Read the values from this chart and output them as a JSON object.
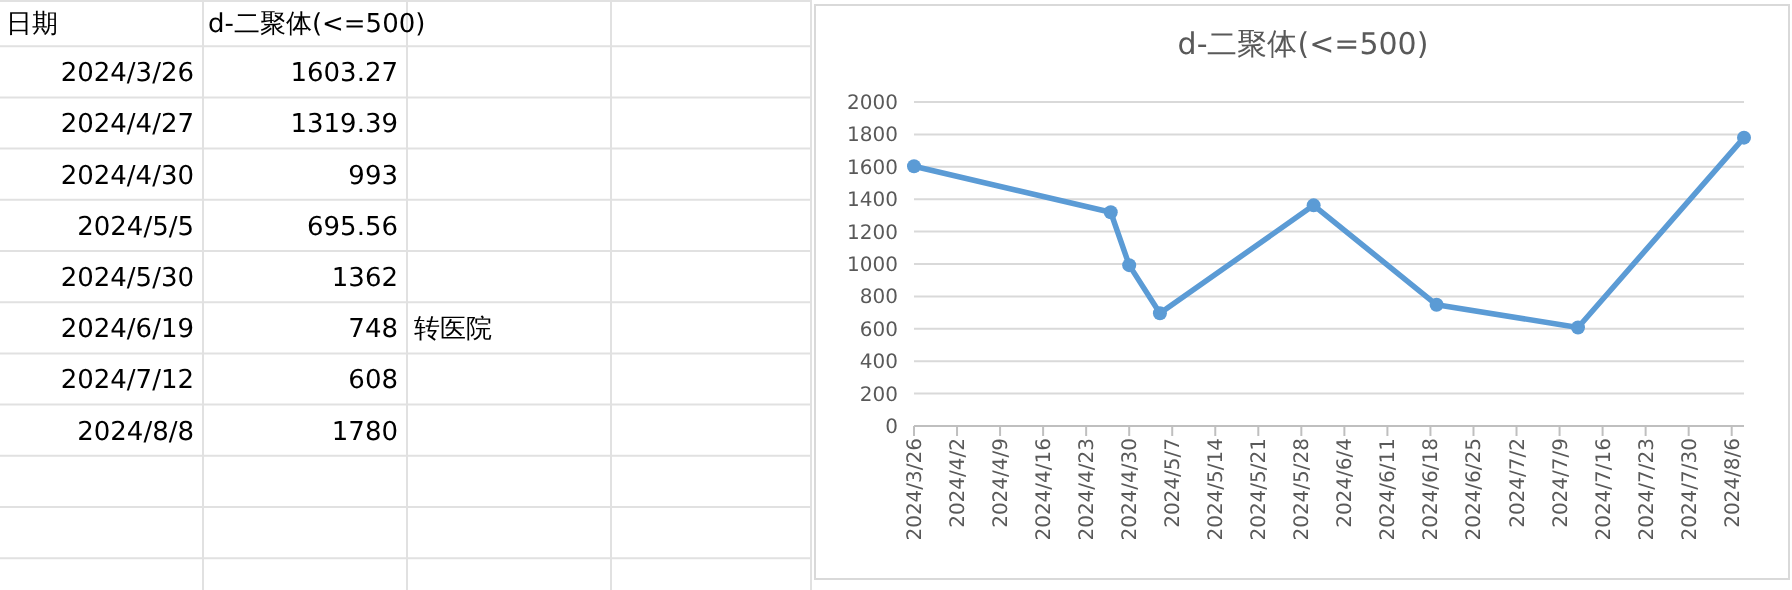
{
  "chart_data": [
    {
      "type": "other",
      "categories": [
        "日期",
        "d-二聚体(<=500)",
        null
      ],
      "cell_labels": [
        [
          "2024/3/26",
          "1603.27",
          null
        ],
        [
          "2024/4/27",
          "1319.39",
          null
        ],
        [
          "2024/4/30",
          "993",
          null
        ],
        [
          "2024/5/5",
          "695.56",
          null
        ],
        [
          "2024/5/30",
          "1362",
          null
        ],
        [
          "2024/6/19",
          "748",
          "转医院"
        ],
        [
          "2024/7/12",
          "608",
          null
        ],
        [
          "2024/8/8",
          "1780",
          null
        ]
      ]
    },
    {
      "type": "line",
      "title": "d-二聚体(<=500)",
      "x": [
        "2024-03-26",
        "2024-04-27",
        "2024-04-30",
        "2024-05-05",
        "2024-05-30",
        "2024-06-19",
        "2024-07-12",
        "2024-08-08"
      ],
      "series": [
        {
          "color": "#5b9bd5",
          "values": [
            1603.27,
            1319.39,
            993,
            695.56,
            1362,
            748,
            608,
            1780
          ]
        }
      ],
      "xlim": [
        "2024-03-26",
        "2024-08-08"
      ],
      "xticks": [
        {
          "value": "2024-03-26",
          "label": "2024/3/26"
        },
        {
          "value": "2024-04-02",
          "label": "2024/4/2"
        },
        {
          "value": "2024-04-09",
          "label": "2024/4/9"
        },
        {
          "value": "2024-04-16",
          "label": "2024/4/16"
        },
        {
          "value": "2024-04-23",
          "label": "2024/4/23"
        },
        {
          "value": "2024-04-30",
          "label": "2024/4/30"
        },
        {
          "value": "2024-05-07",
          "label": "2024/5/7"
        },
        {
          "value": "2024-05-14",
          "label": "2024/5/14"
        },
        {
          "value": "2024-05-21",
          "label": "2024/5/21"
        },
        {
          "value": "2024-05-28",
          "label": "2024/5/28"
        },
        {
          "value": "2024-06-04",
          "label": "2024/6/4"
        },
        {
          "value": "2024-06-11",
          "label": "2024/6/11"
        },
        {
          "value": "2024-06-18",
          "label": "2024/6/18"
        },
        {
          "value": "2024-06-25",
          "label": "2024/6/25"
        },
        {
          "value": "2024-07-02",
          "label": "2024/7/2"
        },
        {
          "value": "2024-07-09",
          "label": "2024/7/9"
        },
        {
          "value": "2024-07-16",
          "label": "2024/7/16"
        },
        {
          "value": "2024-07-23",
          "label": "2024/7/23"
        },
        {
          "value": "2024-07-30",
          "label": "2024/7/30"
        },
        {
          "value": "2024-08-06",
          "label": "2024/8/6"
        }
      ],
      "ylim": [
        0,
        2000
      ],
      "yticks": [
        0,
        200,
        400,
        600,
        800,
        1000,
        1200,
        1400,
        1600,
        1800,
        2000
      ],
      "grid": "y",
      "marker": "circle",
      "line_style": "solid"
    }
  ]
}
